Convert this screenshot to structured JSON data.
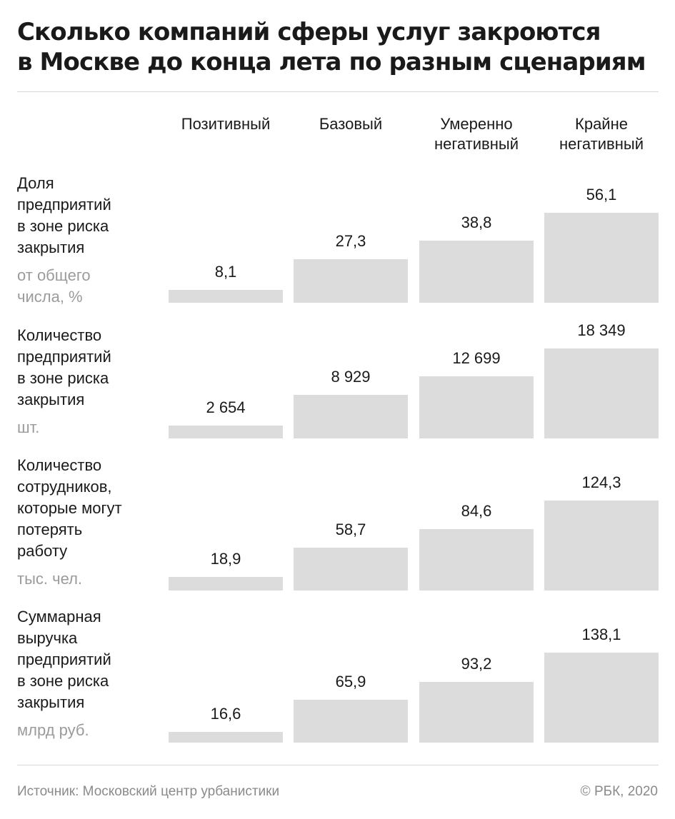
{
  "title": {
    "line1": "Сколько компаний сферы услуг закроются",
    "line2": "в Москве до конца лета по разным сценариям"
  },
  "chart_data": {
    "type": "bar",
    "categories": [
      [
        "Позитивный"
      ],
      [
        "Базовый"
      ],
      [
        "Умеренно",
        "негативный"
      ],
      [
        "Крайне",
        "негативный"
      ]
    ],
    "rows": [
      {
        "label_lines": [
          "Доля",
          "предприятий",
          "в зоне риска",
          "закрытия"
        ],
        "unit_lines": [
          "от общего",
          "числа, %"
        ],
        "values": [
          8.1,
          27.3,
          38.8,
          56.1
        ],
        "labels": [
          "8,1",
          "27,3",
          "38,8",
          "56,1"
        ]
      },
      {
        "label_lines": [
          "Количество",
          "предприятий",
          "в зоне риска",
          "закрытия"
        ],
        "unit_lines": [
          "шт."
        ],
        "values": [
          2654,
          8929,
          12699,
          18349
        ],
        "labels": [
          "2 654",
          "8 929",
          "12 699",
          "18 349"
        ]
      },
      {
        "label_lines": [
          "Количество",
          "сотрудников,",
          "которые могут",
          "потерять",
          "работу"
        ],
        "unit_lines": [
          "тыс. чел."
        ],
        "values": [
          18.9,
          58.7,
          84.6,
          124.3
        ],
        "labels": [
          "18,9",
          "58,7",
          "84,6",
          "124,3"
        ]
      },
      {
        "label_lines": [
          "Суммарная",
          "выручка",
          "предприятий",
          "в зоне риска",
          "закрытия"
        ],
        "unit_lines": [
          "млрд руб."
        ],
        "values": [
          16.6,
          65.9,
          93.2,
          138.1
        ],
        "labels": [
          "16,6",
          "65,9",
          "93,2",
          "138,1"
        ]
      }
    ]
  },
  "footer": {
    "source": "Источник: Московский центр урбанистики",
    "copyright": "© РБК, 2020"
  },
  "colors": {
    "bar": "#dcdcdc",
    "text": "#1a1a1a",
    "muted": "#9b9b9b",
    "rule": "#d6d6d6"
  }
}
